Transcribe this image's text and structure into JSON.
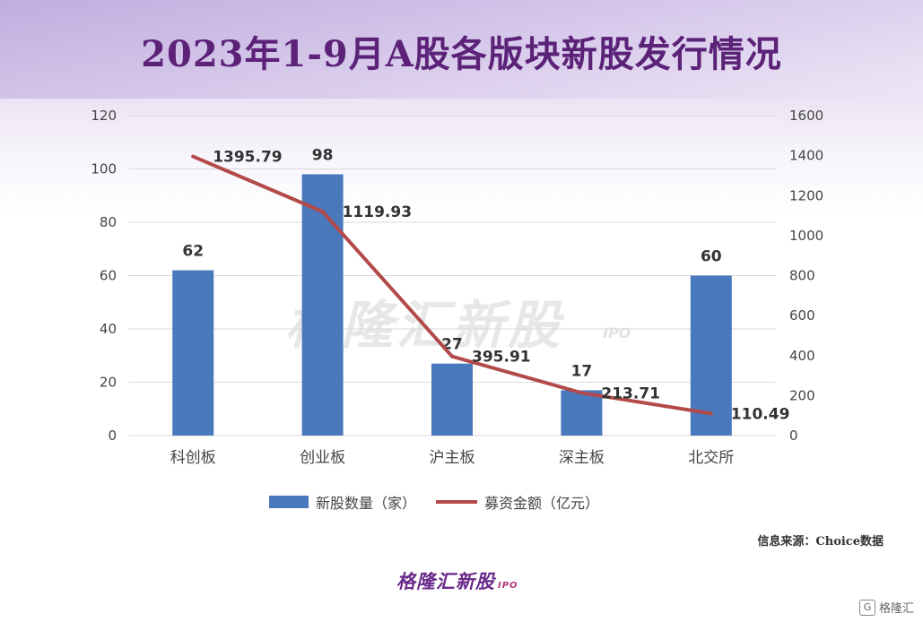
{
  "title": "2023年1-9月A股各版块新股发行情况",
  "source": "信息来源：Choice数据",
  "watermark": {
    "main": "格隆汇新股",
    "sub": "IPO"
  },
  "footer_logo": {
    "main": "格隆汇新股",
    "sub": "IPO"
  },
  "corner_mark": "格隆汇",
  "colors": {
    "bar": "#4a78bd",
    "line": "#b34a4a",
    "title": "#5b2278",
    "grid": "#d9d9d9"
  },
  "chart_data": {
    "type": "bar",
    "categories": [
      "科创板",
      "创业板",
      "沪主板",
      "深主板",
      "北交所"
    ],
    "series": [
      {
        "name": "新股数量（家）",
        "type": "bar",
        "axis": "left",
        "values": [
          62,
          98,
          27,
          17,
          60
        ],
        "labels": [
          "62",
          "98",
          "27",
          "17",
          "60"
        ]
      },
      {
        "name": "募资金额（亿元）",
        "type": "line",
        "axis": "right",
        "values": [
          1395.79,
          1119.93,
          395.91,
          213.71,
          110.49
        ],
        "labels": [
          "1395.79",
          "1119.93",
          "395.91",
          "213.71",
          "110.49"
        ]
      }
    ],
    "y_left": {
      "min": 0,
      "max": 120,
      "ticks": [
        "0",
        "20",
        "40",
        "60",
        "80",
        "100",
        "120"
      ]
    },
    "y_right": {
      "min": 0,
      "max": 1600,
      "ticks": [
        "0",
        "200",
        "400",
        "600",
        "800",
        "1000",
        "1200",
        "1400",
        "1600"
      ]
    },
    "grid": true,
    "legend_position": "bottom"
  }
}
